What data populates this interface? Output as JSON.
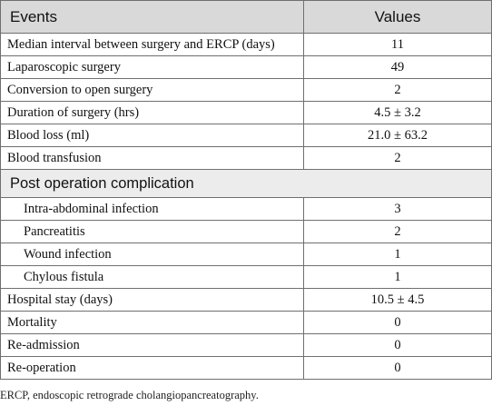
{
  "table": {
    "headers": {
      "events": "Events",
      "values": "Values"
    },
    "rows_before": [
      {
        "label": "Median interval between surgery and ERCP (days)",
        "value": "11"
      },
      {
        "label": "Laparoscopic surgery",
        "value": "49"
      },
      {
        "label": "Conversion to open surgery",
        "value": "2"
      },
      {
        "label": "Duration of surgery (hrs)",
        "value": "4.5 ± 3.2"
      },
      {
        "label": "Blood loss (ml)",
        "value": "21.0 ± 63.2"
      },
      {
        "label": "Blood transfusion",
        "value": "2"
      }
    ],
    "section": "Post operation complication",
    "section_rows": [
      {
        "label": "Intra-abdominal infection",
        "value": "3"
      },
      {
        "label": "Pancreatitis",
        "value": "2"
      },
      {
        "label": "Wound infection",
        "value": "1"
      },
      {
        "label": "Chylous fistula",
        "value": "1"
      }
    ],
    "rows_after": [
      {
        "label": "Hospital stay (days)",
        "value": "10.5 ± 4.5"
      },
      {
        "label": "Mortality",
        "value": "0"
      },
      {
        "label": "Re-admission",
        "value": "0"
      },
      {
        "label": "Re-operation",
        "value": "0"
      }
    ]
  },
  "footnote": "ERCP, endoscopic retrograde cholangiopancreatography."
}
